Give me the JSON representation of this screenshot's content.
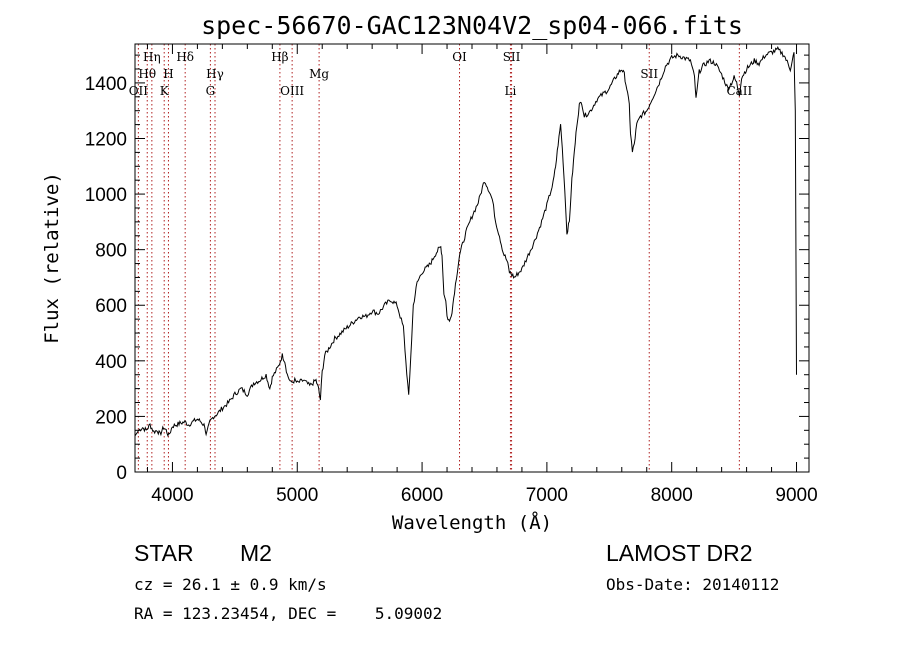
{
  "chart_data": {
    "type": "line",
    "title": "spec-56670-GAC123N04V2_sp04-066.fits",
    "xlabel": "Wavelength (Å)",
    "ylabel": "Flux (relative)",
    "xlim": [
      3700,
      9100
    ],
    "ylim": [
      0,
      1540
    ],
    "x_ticks": [
      "4000",
      "5000",
      "6000",
      "7000",
      "8000",
      "9000"
    ],
    "y_ticks": [
      "0",
      "200",
      "400",
      "600",
      "800",
      "1000",
      "1200",
      "1400"
    ],
    "grid": false,
    "line_color": "#000000",
    "marker_color": "#b02020",
    "spectral_lines": [
      {
        "name": "OII",
        "wavelength": 3727,
        "row": 3
      },
      {
        "name": "Hθ",
        "wavelength": 3798,
        "row": 2
      },
      {
        "name": "Hη",
        "wavelength": 3835,
        "row": 1
      },
      {
        "name": "K",
        "wavelength": 3934,
        "row": 3
      },
      {
        "name": "H",
        "wavelength": 3968,
        "row": 2
      },
      {
        "name": "Hδ",
        "wavelength": 4102,
        "row": 1
      },
      {
        "name": "G",
        "wavelength": 4304,
        "row": 3
      },
      {
        "name": "Hγ",
        "wavelength": 4341,
        "row": 2
      },
      {
        "name": "Hβ",
        "wavelength": 4861,
        "row": 1
      },
      {
        "name": "OIII",
        "wavelength": 4959,
        "row": 3
      },
      {
        "name": "Mg",
        "wavelength": 5175,
        "row": 2
      },
      {
        "name": "OI",
        "wavelength": 6300,
        "row": 1
      },
      {
        "name": "SII",
        "wavelength": 6717,
        "row": 1
      },
      {
        "name": "Li",
        "wavelength": 6708,
        "row": 3
      },
      {
        "name": "SII",
        "wavelength": 7820,
        "row": 2
      },
      {
        "name": "CaII",
        "wavelength": 8542,
        "row": 3
      }
    ],
    "series": [
      {
        "x": [
          3700,
          3730,
          3760,
          3790,
          3820,
          3850,
          3880,
          3900,
          3930,
          3950,
          3970,
          4000,
          4030,
          4060,
          4100,
          4130,
          4160,
          4200,
          4230,
          4260,
          4270,
          4300,
          4330,
          4360,
          4400,
          4450,
          4500,
          4550,
          4600,
          4650,
          4700,
          4750,
          4780,
          4800,
          4850,
          4880,
          4900,
          4920,
          4950,
          4980,
          5000,
          5050,
          5100,
          5150,
          5170,
          5185,
          5200,
          5220,
          5260,
          5300,
          5350,
          5400,
          5450,
          5500,
          5550,
          5600,
          5650,
          5700,
          5750,
          5800,
          5850,
          5870,
          5893,
          5910,
          5930,
          5960,
          6000,
          6050,
          6080,
          6100,
          6130,
          6150,
          6160,
          6175,
          6190,
          6200,
          6220,
          6240,
          6260,
          6300,
          6350,
          6400,
          6450,
          6500,
          6530,
          6563,
          6590,
          6620,
          6650,
          6680,
          6700,
          6720,
          6740,
          6760,
          6800,
          6850,
          6900,
          6950,
          7000,
          7050,
          7070,
          7090,
          7110,
          7130,
          7150,
          7160,
          7180,
          7200,
          7220,
          7240,
          7260,
          7280,
          7300,
          7350,
          7400,
          7450,
          7500,
          7550,
          7580,
          7600,
          7620,
          7640,
          7660,
          7670,
          7685,
          7700,
          7720,
          7750,
          7800,
          7850,
          7900,
          7950,
          8000,
          8050,
          8100,
          8150,
          8183,
          8195,
          8220,
          8250,
          8300,
          8350,
          8400,
          8450,
          8480,
          8500,
          8520,
          8542,
          8560,
          8600,
          8662,
          8700,
          8750,
          8800,
          8850,
          8900,
          8950,
          8980,
          8990,
          9000
        ],
        "y": [
          130,
          150,
          160,
          150,
          170,
          145,
          150,
          135,
          160,
          150,
          130,
          165,
          170,
          175,
          180,
          170,
          180,
          190,
          180,
          165,
          130,
          180,
          200,
          210,
          230,
          250,
          280,
          300,
          280,
          320,
          330,
          350,
          300,
          340,
          380,
          420,
          400,
          350,
          320,
          330,
          320,
          330,
          310,
          330,
          300,
          260,
          360,
          420,
          450,
          480,
          500,
          520,
          540,
          560,
          560,
          580,
          570,
          600,
          620,
          600,
          520,
          400,
          270,
          420,
          600,
          680,
          720,
          740,
          760,
          780,
          800,
          810,
          780,
          640,
          620,
          560,
          540,
          580,
          650,
          780,
          860,
          920,
          970,
          1050,
          1020,
          980,
          900,
          850,
          790,
          760,
          720,
          710,
          700,
          710,
          730,
          780,
          830,
          890,
          960,
          1040,
          1100,
          1180,
          1250,
          1120,
          960,
          860,
          900,
          1050,
          1150,
          1250,
          1320,
          1330,
          1280,
          1300,
          1340,
          1360,
          1380,
          1420,
          1440,
          1450,
          1430,
          1380,
          1320,
          1220,
          1150,
          1180,
          1250,
          1280,
          1300,
          1350,
          1400,
          1460,
          1490,
          1500,
          1490,
          1480,
          1420,
          1340,
          1440,
          1460,
          1480,
          1470,
          1430,
          1380,
          1400,
          1420,
          1400,
          1360,
          1420,
          1450,
          1480,
          1470,
          1500,
          1510,
          1520,
          1500,
          1450,
          1510,
          1300,
          350
        ]
      }
    ]
  },
  "info": {
    "obj_class": "STAR",
    "subclass": "M2",
    "survey": "LAMOST DR2",
    "cz": "cz = 26.1 ± 0.9 km/s",
    "obs_date": "Obs-Date: 20140112",
    "radec": "RA = 123.23454, DEC =    5.09002"
  }
}
